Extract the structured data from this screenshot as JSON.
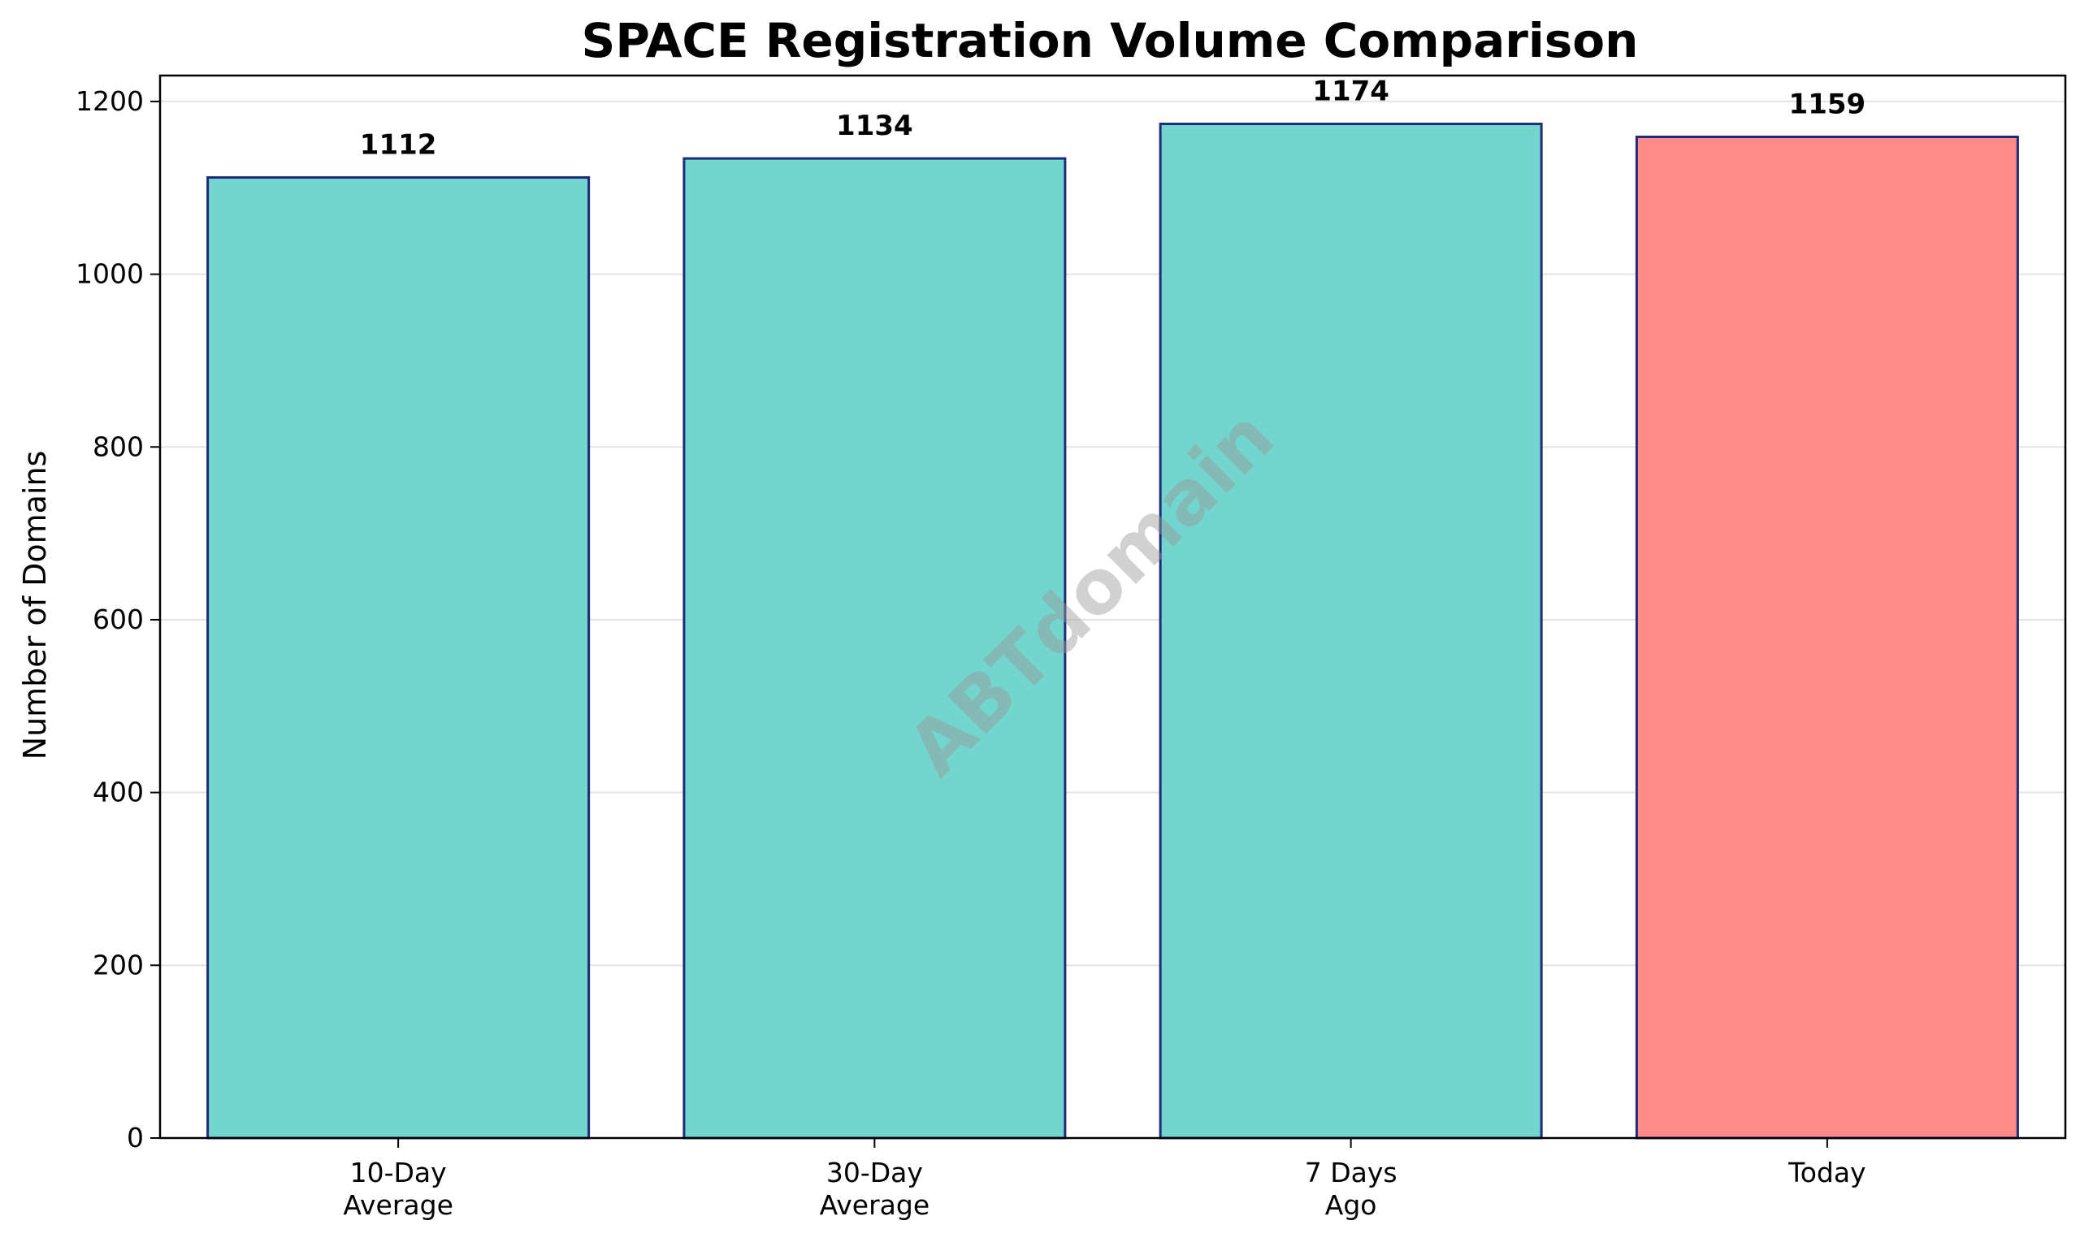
{
  "chart_data": {
    "type": "bar",
    "title": "SPACE Registration Volume Comparison",
    "xlabel": "",
    "ylabel": "Number of Domains",
    "categories": [
      [
        "10-Day",
        "Average"
      ],
      [
        "30-Day",
        "Average"
      ],
      [
        "7 Days",
        "Ago"
      ],
      [
        "Today"
      ]
    ],
    "values": [
      1112,
      1134,
      1174,
      1159
    ],
    "data_labels": [
      "1112",
      "1134",
      "1174",
      "1159"
    ],
    "bar_colors": [
      "#72d6ce",
      "#72d6ce",
      "#72d6ce",
      "#ff8a8a"
    ],
    "edge_color": "#1f2a7a",
    "ylim": [
      0,
      1230
    ],
    "yticks": [
      0,
      200,
      400,
      600,
      800,
      1000,
      1200
    ],
    "grid": "y",
    "legend": "none"
  },
  "watermark": "ABTdomain"
}
